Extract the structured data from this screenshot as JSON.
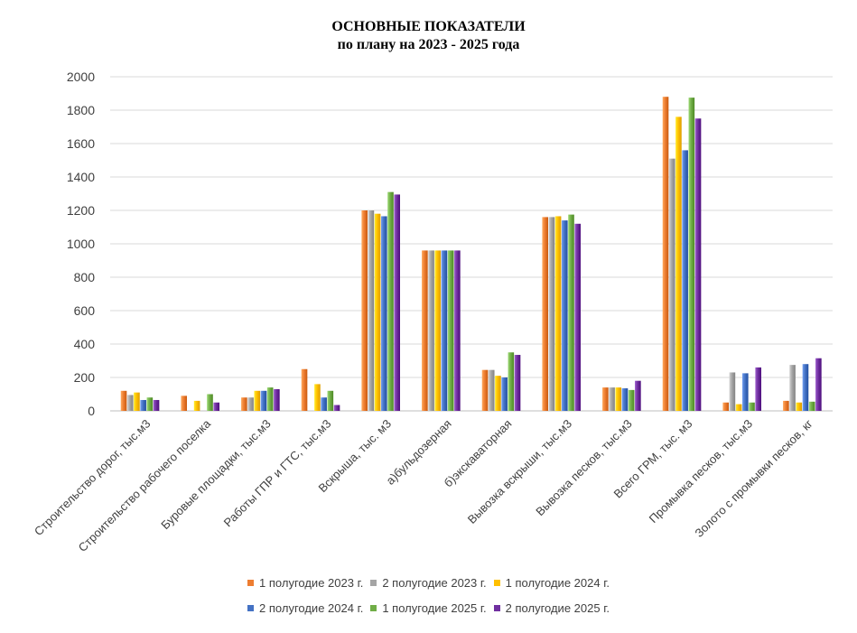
{
  "chart_data": {
    "type": "bar",
    "title": [
      "ОСНОВНЫЕ ПОКАЗАТЕЛИ",
      "по плану на 2023 - 2025 года"
    ],
    "ylim": [
      0,
      2000
    ],
    "yticks": [
      0,
      200,
      400,
      600,
      800,
      1000,
      1200,
      1400,
      1600,
      1800,
      2000
    ],
    "grid": true,
    "legend_position": "bottom",
    "categories": [
      "Строительство дорог, тыс.м3",
      "Строительство  рабочего поселка",
      "Буровые площадки, тыс.м3",
      "Работы ГПР и ГТС, тыс.м3",
      "Вскрыша, тыс. м3",
      "а)бульдозерная",
      "б)экскаваторная",
      "Вывозка вскрыши, тыс.м3",
      "Вывозка песков, тыс.м3",
      "Всего ГРМ, тыс. м3",
      "Промывка песков, тыс.м3",
      "Золото с промывки песков, кг"
    ],
    "series": [
      {
        "name": "1 полугодие 2023 г.",
        "color": "#ED7D31",
        "values": [
          120,
          90,
          80,
          250,
          1200,
          960,
          245,
          1160,
          140,
          1880,
          50,
          60
        ]
      },
      {
        "name": "2 полугодие 2023 г.",
        "color": "#A5A5A5",
        "values": [
          95,
          0,
          80,
          0,
          1200,
          960,
          245,
          1160,
          140,
          1510,
          230,
          275
        ]
      },
      {
        "name": "1 полугодие 2024 г.",
        "color": "#FFC000",
        "values": [
          110,
          60,
          120,
          160,
          1180,
          960,
          210,
          1165,
          140,
          1760,
          40,
          50
        ]
      },
      {
        "name": "2 полугодие 2024 г.",
        "color": "#4472C4",
        "values": [
          65,
          0,
          120,
          80,
          1165,
          960,
          200,
          1140,
          135,
          1560,
          225,
          280
        ]
      },
      {
        "name": "1 полугодие 2025 г.",
        "color": "#70AD47",
        "values": [
          80,
          100,
          140,
          120,
          1310,
          960,
          350,
          1175,
          125,
          1875,
          50,
          55
        ]
      },
      {
        "name": "2 полугодие 2025 г.",
        "color": "#7030A0",
        "values": [
          65,
          50,
          130,
          35,
          1295,
          960,
          335,
          1120,
          180,
          1750,
          260,
          315
        ]
      }
    ]
  }
}
